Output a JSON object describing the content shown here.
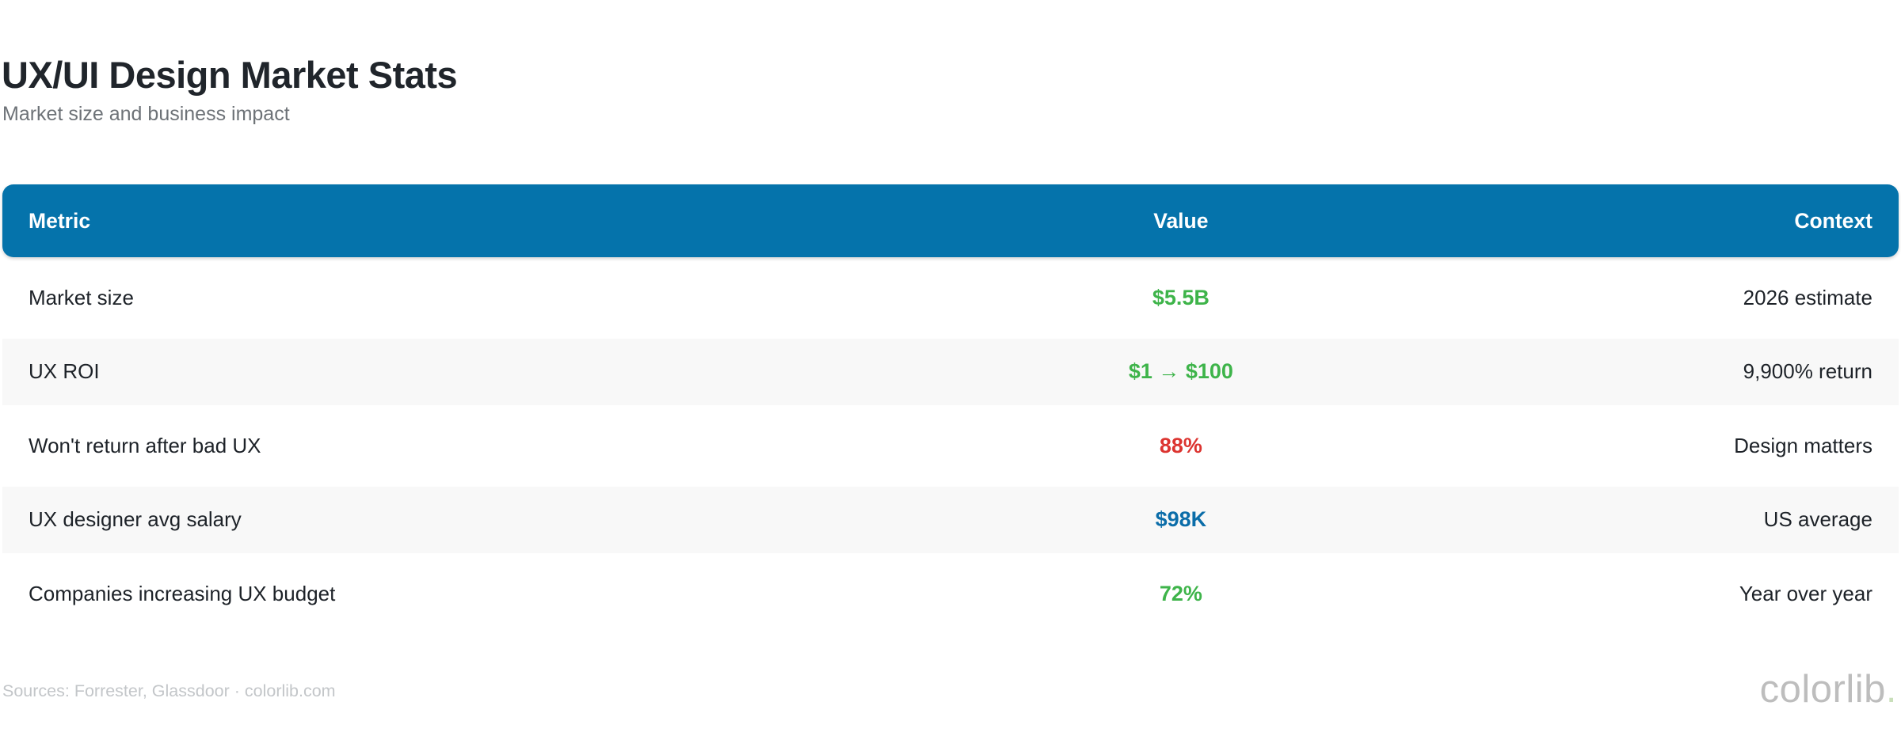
{
  "header": {
    "title": "UX/UI Design Market Stats",
    "subtitle": "Market size and business impact"
  },
  "table": {
    "columns": [
      {
        "label": "Metric",
        "align": "left"
      },
      {
        "label": "Value",
        "align": "center"
      },
      {
        "label": "Context",
        "align": "right"
      }
    ],
    "rows": [
      {
        "metric": "Market size",
        "value": "$5.5B",
        "value_color": "green",
        "context": "2026 estimate"
      },
      {
        "metric": "UX ROI",
        "value": "$1 → $100",
        "value_color": "green",
        "context": "9,900% return"
      },
      {
        "metric": "Won't return after bad UX",
        "value": "88%",
        "value_color": "red",
        "context": "Design matters"
      },
      {
        "metric": "UX designer avg salary",
        "value": "$98K",
        "value_color": "blue",
        "context": "US average"
      },
      {
        "metric": "Companies increasing UX budget",
        "value": "72%",
        "value_color": "green",
        "context": "Year over year"
      }
    ]
  },
  "footer": {
    "sources": "Sources: Forrester, Glassdoor · colorlib.com",
    "watermark": "colorlib",
    "watermark_dot": "."
  },
  "colors": {
    "header_bg": "#0573ab",
    "green": "#3eb44a",
    "red": "#dc3430",
    "blue": "#0b6da9",
    "stripe": "#f8f8f8"
  },
  "chart_data": {
    "type": "table",
    "title": "UX/UI Design Market Stats",
    "subtitle": "Market size and business impact",
    "columns": [
      "Metric",
      "Value",
      "Context"
    ],
    "rows": [
      [
        "Market size",
        "$5.5B",
        "2026 estimate"
      ],
      [
        "UX ROI",
        "$1 → $100",
        "9,900% return"
      ],
      [
        "Won't return after bad UX",
        "88%",
        "Design matters"
      ],
      [
        "UX designer avg salary",
        "$98K",
        "US average"
      ],
      [
        "Companies increasing UX budget",
        "72%",
        "Year over year"
      ]
    ],
    "value_colors": [
      "green",
      "green",
      "red",
      "blue",
      "green"
    ],
    "notes": "Sources: Forrester, Glassdoor · colorlib.com"
  }
}
